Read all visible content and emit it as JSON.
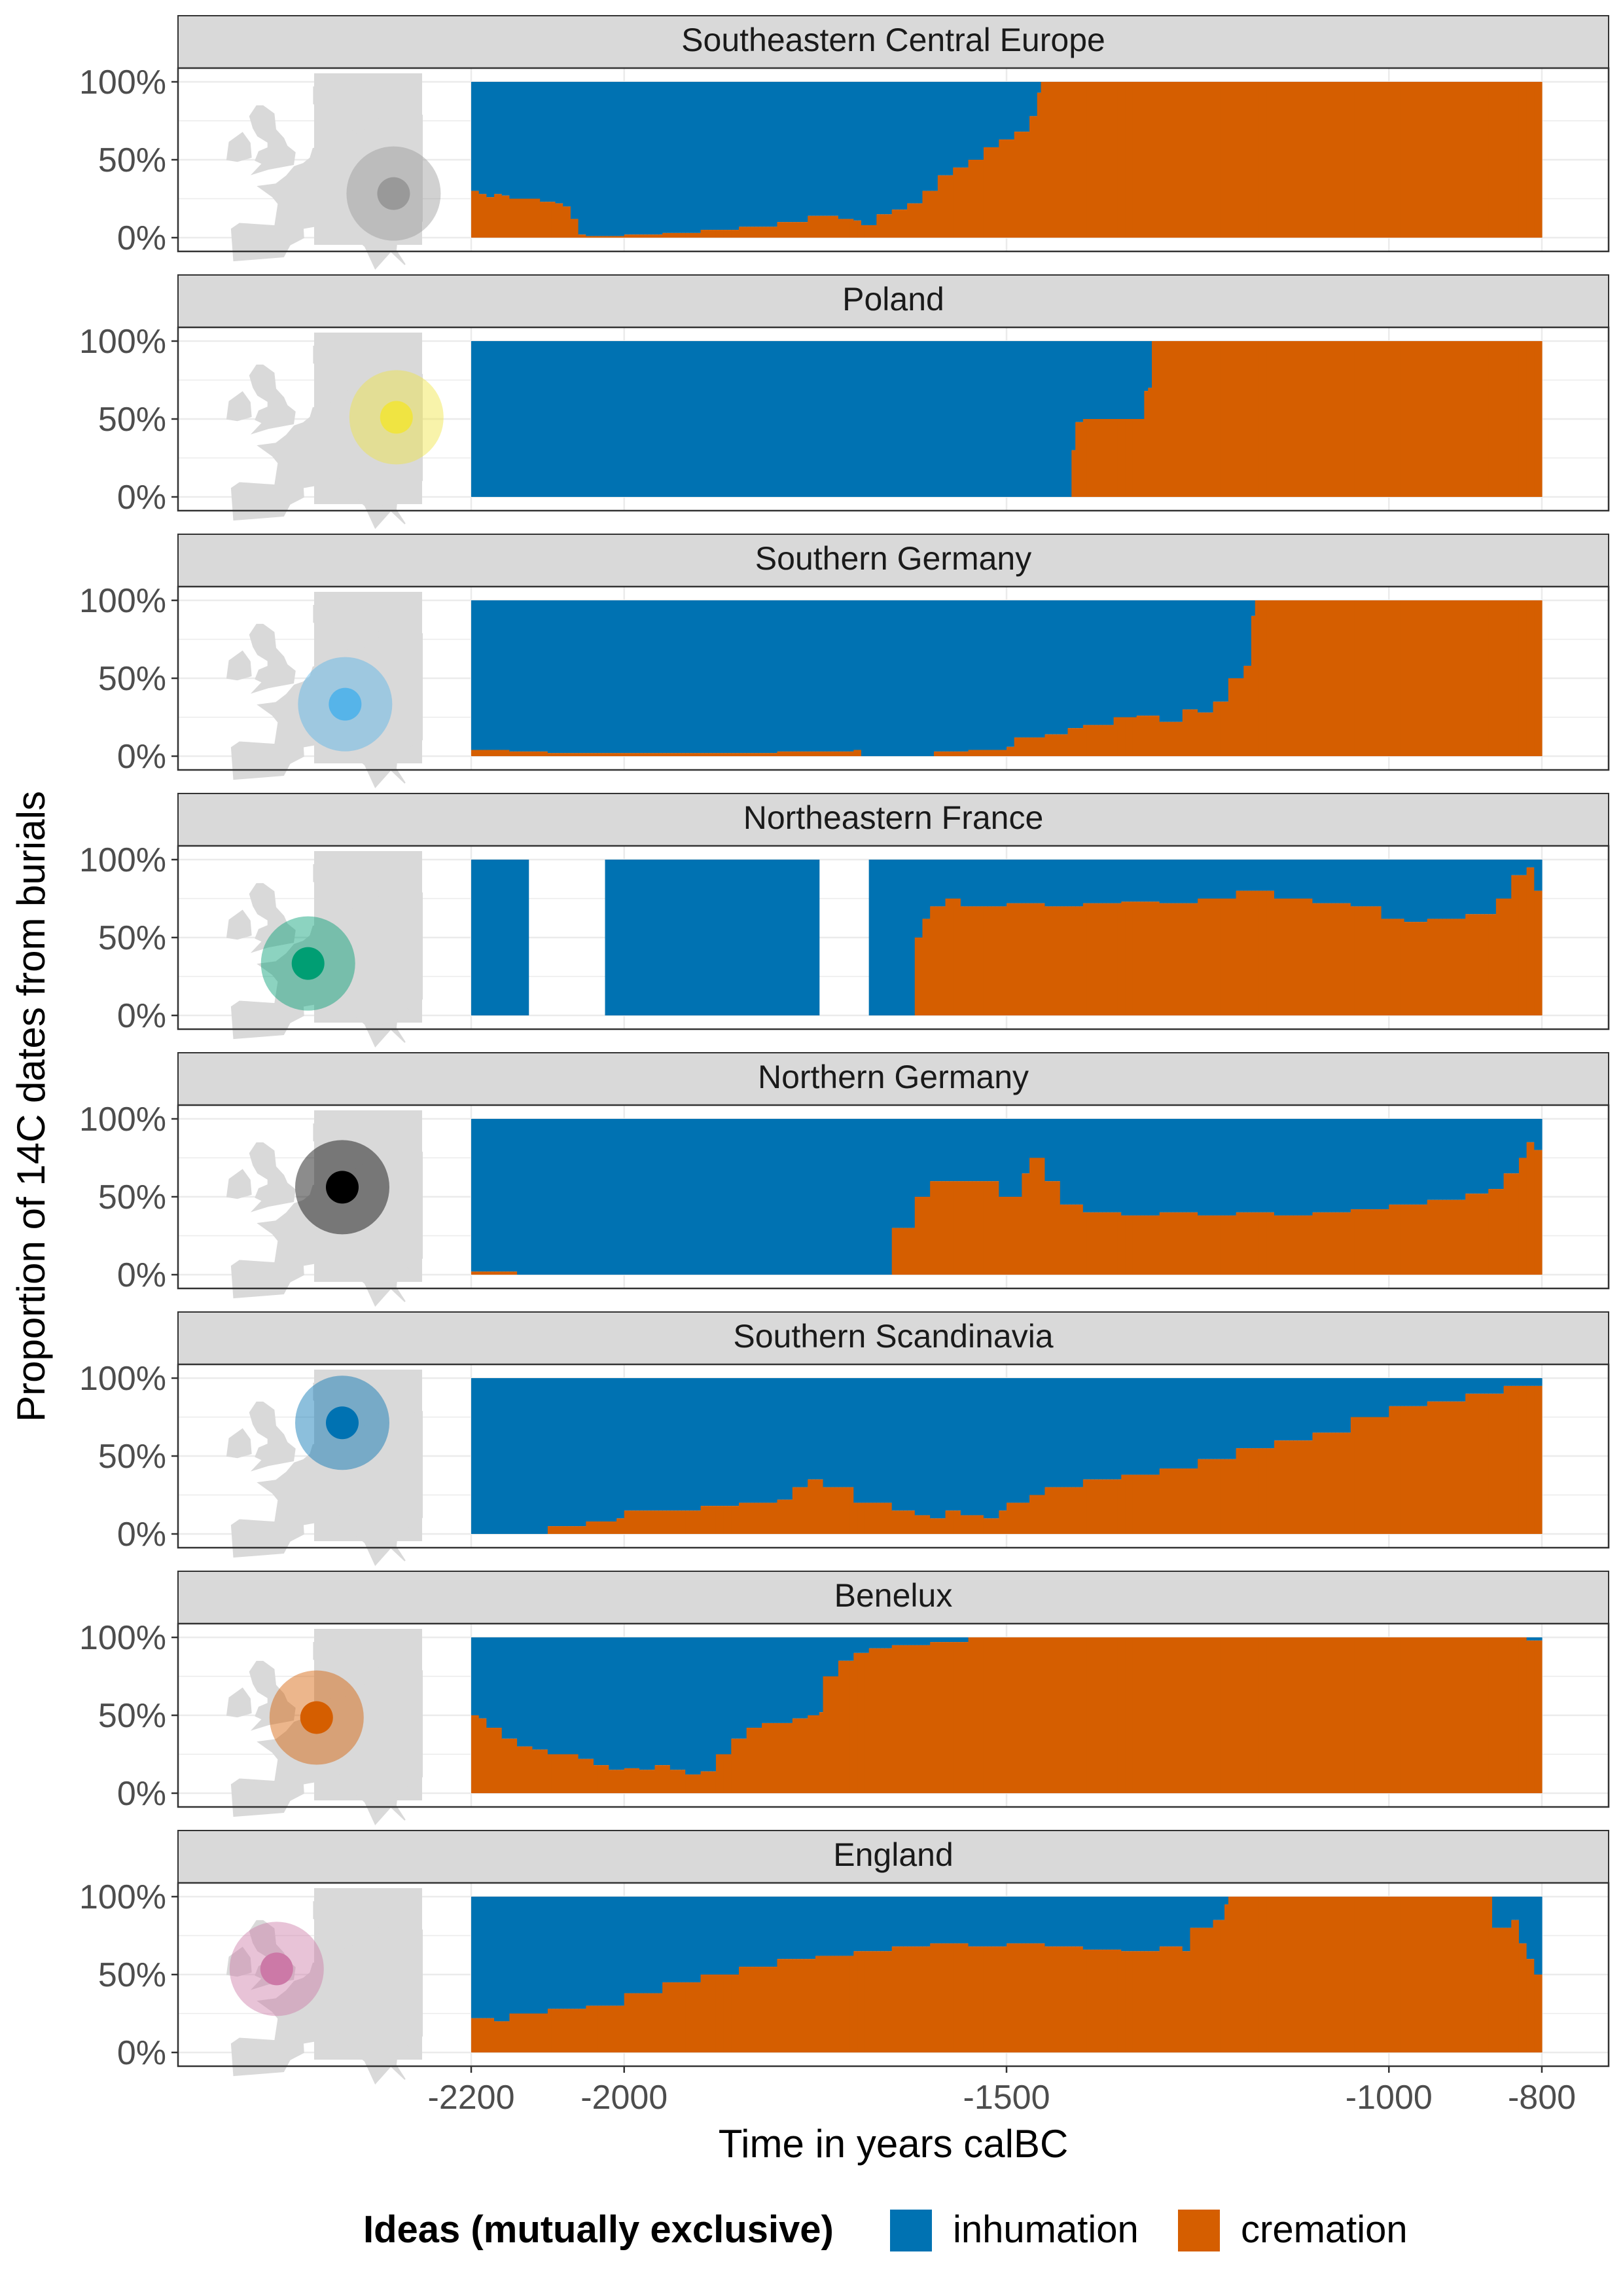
{
  "colors": {
    "inhumation": "#0072B2",
    "cremation": "#D55E00",
    "strip_fill": "#D9D9D9",
    "map_land": "#D9D9D9",
    "grid": "#EBEBEB"
  },
  "chart_data": {
    "type": "area",
    "stacked_proportion": true,
    "facet_by": "region",
    "xlabel": "Time in years calBC",
    "ylabel": "Proportion of 14C dates from burials",
    "xlim": [
      -2200,
      -800
    ],
    "x_ticks": [
      -2200,
      -2000,
      -1500,
      -1000,
      -800
    ],
    "x_tick_labels": [
      "-2200",
      "-2000",
      "-1500",
      "-1000",
      "-800"
    ],
    "ylim": [
      0,
      1
    ],
    "y_ticks": [
      0,
      0.5,
      1
    ],
    "y_tick_labels": [
      "0%",
      "50%",
      "100%"
    ],
    "grid": true,
    "legend": {
      "position": "bottom",
      "title": "Ideas (mutually exclusive)",
      "entries": [
        {
          "key": "inhumation",
          "label": "inhumation",
          "color": "#0072B2"
        },
        {
          "key": "cremation",
          "label": "cremation",
          "color": "#D55E00"
        }
      ]
    },
    "facets": [
      {
        "title": "Southeastern Central Europe",
        "map_marker_color": "#999999",
        "map_marker": {
          "lon": 19.0,
          "lat": 47.5
        },
        "cremation_share": [
          [
            -2200,
            0.3
          ],
          [
            -2190,
            0.28
          ],
          [
            -2180,
            0.26
          ],
          [
            -2170,
            0.28
          ],
          [
            -2160,
            0.27
          ],
          [
            -2150,
            0.25
          ],
          [
            -2130,
            0.25
          ],
          [
            -2110,
            0.23
          ],
          [
            -2090,
            0.22
          ],
          [
            -2080,
            0.2
          ],
          [
            -2070,
            0.12
          ],
          [
            -2060,
            0.02
          ],
          [
            -2050,
            0.01
          ],
          [
            -2000,
            0.02
          ],
          [
            -1950,
            0.03
          ],
          [
            -1900,
            0.05
          ],
          [
            -1850,
            0.07
          ],
          [
            -1800,
            0.1
          ],
          [
            -1760,
            0.14
          ],
          [
            -1740,
            0.14
          ],
          [
            -1720,
            0.12
          ],
          [
            -1700,
            0.11
          ],
          [
            -1690,
            0.08
          ],
          [
            -1670,
            0.15
          ],
          [
            -1650,
            0.18
          ],
          [
            -1630,
            0.22
          ],
          [
            -1610,
            0.3
          ],
          [
            -1590,
            0.4
          ],
          [
            -1570,
            0.45
          ],
          [
            -1550,
            0.5
          ],
          [
            -1530,
            0.58
          ],
          [
            -1510,
            0.63
          ],
          [
            -1490,
            0.68
          ],
          [
            -1470,
            0.78
          ],
          [
            -1460,
            0.93
          ],
          [
            -1455,
            1.0
          ],
          [
            -800,
            1.0
          ]
        ]
      },
      {
        "title": "Poland",
        "map_marker_color": "#F0E442",
        "map_marker": {
          "lon": 19.5,
          "lat": 52.0
        },
        "cremation_share": [
          [
            -2200,
            0.0
          ],
          [
            -1416,
            0.0
          ],
          [
            -1414,
            0.3
          ],
          [
            -1410,
            0.48
          ],
          [
            -1400,
            0.5
          ],
          [
            -1330,
            0.5
          ],
          [
            -1320,
            0.68
          ],
          [
            -1315,
            0.7
          ],
          [
            -1312,
            1.0
          ],
          [
            -800,
            1.0
          ]
        ]
      },
      {
        "title": "Southern Germany",
        "map_marker_color": "#56B4E9",
        "map_marker": {
          "lon": 10.5,
          "lat": 48.5
        },
        "cremation_share": [
          [
            -2200,
            0.04
          ],
          [
            -2150,
            0.03
          ],
          [
            -2100,
            0.02
          ],
          [
            -2000,
            0.02
          ],
          [
            -1900,
            0.02
          ],
          [
            -1800,
            0.03
          ],
          [
            -1700,
            0.04
          ],
          [
            -1690,
            0.0
          ],
          [
            -1600,
            0.0
          ],
          [
            -1595,
            0.03
          ],
          [
            -1550,
            0.04
          ],
          [
            -1500,
            0.06
          ],
          [
            -1490,
            0.12
          ],
          [
            -1450,
            0.14
          ],
          [
            -1420,
            0.18
          ],
          [
            -1400,
            0.2
          ],
          [
            -1360,
            0.25
          ],
          [
            -1330,
            0.26
          ],
          [
            -1300,
            0.22
          ],
          [
            -1270,
            0.3
          ],
          [
            -1250,
            0.28
          ],
          [
            -1230,
            0.35
          ],
          [
            -1210,
            0.5
          ],
          [
            -1190,
            0.58
          ],
          [
            -1180,
            0.9
          ],
          [
            -1175,
            1.0
          ],
          [
            -800,
            1.0
          ]
        ]
      },
      {
        "title": "Northeastern France",
        "map_marker_color": "#009E73",
        "map_marker": {
          "lon": 4.0,
          "lat": 48.5
        },
        "gaps": [
          [
            -2125,
            -2025
          ],
          [
            -1745,
            -1680
          ]
        ],
        "cremation_share": [
          [
            -2200,
            0.0
          ],
          [
            -1625,
            0.0
          ],
          [
            -1620,
            0.5
          ],
          [
            -1610,
            0.62
          ],
          [
            -1600,
            0.7
          ],
          [
            -1580,
            0.75
          ],
          [
            -1560,
            0.7
          ],
          [
            -1500,
            0.72
          ],
          [
            -1450,
            0.7
          ],
          [
            -1400,
            0.72
          ],
          [
            -1350,
            0.73
          ],
          [
            -1300,
            0.72
          ],
          [
            -1250,
            0.75
          ],
          [
            -1200,
            0.8
          ],
          [
            -1150,
            0.75
          ],
          [
            -1100,
            0.72
          ],
          [
            -1050,
            0.7
          ],
          [
            -1010,
            0.62
          ],
          [
            -980,
            0.6
          ],
          [
            -950,
            0.62
          ],
          [
            -900,
            0.65
          ],
          [
            -860,
            0.75
          ],
          [
            -840,
            0.9
          ],
          [
            -820,
            0.95
          ],
          [
            -810,
            0.8
          ],
          [
            -800,
            0.6
          ]
        ]
      },
      {
        "title": "Northern Germany",
        "map_marker_color": "#000000",
        "map_marker": {
          "lon": 10.0,
          "lat": 53.0
        },
        "cremation_share": [
          [
            -2200,
            0.02
          ],
          [
            -2150,
            0.02
          ],
          [
            -2140,
            0.0
          ],
          [
            -1660,
            0.0
          ],
          [
            -1650,
            0.3
          ],
          [
            -1640,
            0.3
          ],
          [
            -1620,
            0.5
          ],
          [
            -1600,
            0.6
          ],
          [
            -1560,
            0.6
          ],
          [
            -1520,
            0.6
          ],
          [
            -1510,
            0.5
          ],
          [
            -1500,
            0.5
          ],
          [
            -1480,
            0.65
          ],
          [
            -1470,
            0.75
          ],
          [
            -1450,
            0.6
          ],
          [
            -1430,
            0.45
          ],
          [
            -1400,
            0.4
          ],
          [
            -1350,
            0.38
          ],
          [
            -1300,
            0.4
          ],
          [
            -1250,
            0.38
          ],
          [
            -1200,
            0.4
          ],
          [
            -1150,
            0.38
          ],
          [
            -1100,
            0.4
          ],
          [
            -1050,
            0.42
          ],
          [
            -1000,
            0.45
          ],
          [
            -950,
            0.48
          ],
          [
            -900,
            0.52
          ],
          [
            -870,
            0.55
          ],
          [
            -850,
            0.65
          ],
          [
            -830,
            0.75
          ],
          [
            -820,
            0.85
          ],
          [
            -810,
            0.8
          ],
          [
            -800,
            0.7
          ]
        ]
      },
      {
        "title": "Southern Scandinavia",
        "map_marker_color": "#0072B2",
        "map_marker": {
          "lon": 10.0,
          "lat": 56.0
        },
        "cremation_share": [
          [
            -2200,
            0.0
          ],
          [
            -2110,
            0.0
          ],
          [
            -2100,
            0.05
          ],
          [
            -2050,
            0.08
          ],
          [
            -2010,
            0.1
          ],
          [
            -2000,
            0.15
          ],
          [
            -1950,
            0.15
          ],
          [
            -1900,
            0.18
          ],
          [
            -1850,
            0.2
          ],
          [
            -1800,
            0.22
          ],
          [
            -1780,
            0.3
          ],
          [
            -1760,
            0.35
          ],
          [
            -1740,
            0.3
          ],
          [
            -1700,
            0.2
          ],
          [
            -1650,
            0.15
          ],
          [
            -1620,
            0.12
          ],
          [
            -1600,
            0.1
          ],
          [
            -1580,
            0.15
          ],
          [
            -1560,
            0.12
          ],
          [
            -1530,
            0.1
          ],
          [
            -1510,
            0.15
          ],
          [
            -1500,
            0.2
          ],
          [
            -1470,
            0.25
          ],
          [
            -1450,
            0.3
          ],
          [
            -1400,
            0.35
          ],
          [
            -1350,
            0.38
          ],
          [
            -1300,
            0.42
          ],
          [
            -1250,
            0.48
          ],
          [
            -1200,
            0.55
          ],
          [
            -1150,
            0.6
          ],
          [
            -1100,
            0.65
          ],
          [
            -1050,
            0.75
          ],
          [
            -1000,
            0.82
          ],
          [
            -950,
            0.85
          ],
          [
            -900,
            0.9
          ],
          [
            -850,
            0.95
          ],
          [
            -800,
            0.95
          ]
        ]
      },
      {
        "title": "Benelux",
        "map_marker_color": "#D55E00",
        "map_marker": {
          "lon": 5.5,
          "lat": 51.5
        },
        "cremation_share": [
          [
            -2200,
            0.5
          ],
          [
            -2190,
            0.48
          ],
          [
            -2180,
            0.42
          ],
          [
            -2160,
            0.35
          ],
          [
            -2140,
            0.3
          ],
          [
            -2120,
            0.28
          ],
          [
            -2100,
            0.25
          ],
          [
            -2080,
            0.25
          ],
          [
            -2060,
            0.22
          ],
          [
            -2040,
            0.18
          ],
          [
            -2020,
            0.15
          ],
          [
            -2000,
            0.16
          ],
          [
            -1980,
            0.15
          ],
          [
            -1960,
            0.18
          ],
          [
            -1940,
            0.15
          ],
          [
            -1920,
            0.12
          ],
          [
            -1900,
            0.14
          ],
          [
            -1880,
            0.25
          ],
          [
            -1860,
            0.35
          ],
          [
            -1840,
            0.42
          ],
          [
            -1820,
            0.45
          ],
          [
            -1800,
            0.45
          ],
          [
            -1780,
            0.48
          ],
          [
            -1760,
            0.5
          ],
          [
            -1745,
            0.52
          ],
          [
            -1740,
            0.75
          ],
          [
            -1720,
            0.85
          ],
          [
            -1700,
            0.9
          ],
          [
            -1680,
            0.93
          ],
          [
            -1650,
            0.95
          ],
          [
            -1600,
            0.97
          ],
          [
            -1550,
            1.0
          ],
          [
            -840,
            1.0
          ],
          [
            -820,
            0.98
          ],
          [
            -800,
            0.93
          ]
        ]
      },
      {
        "title": "England",
        "map_marker_color": "#CC79A7",
        "map_marker": {
          "lon": -1.5,
          "lat": 52.5
        },
        "cremation_share": [
          [
            -2200,
            0.22
          ],
          [
            -2170,
            0.2
          ],
          [
            -2150,
            0.25
          ],
          [
            -2100,
            0.28
          ],
          [
            -2050,
            0.3
          ],
          [
            -2000,
            0.38
          ],
          [
            -1950,
            0.45
          ],
          [
            -1900,
            0.5
          ],
          [
            -1850,
            0.55
          ],
          [
            -1800,
            0.6
          ],
          [
            -1750,
            0.62
          ],
          [
            -1700,
            0.65
          ],
          [
            -1650,
            0.68
          ],
          [
            -1600,
            0.7
          ],
          [
            -1550,
            0.68
          ],
          [
            -1500,
            0.7
          ],
          [
            -1450,
            0.68
          ],
          [
            -1400,
            0.66
          ],
          [
            -1350,
            0.65
          ],
          [
            -1300,
            0.68
          ],
          [
            -1270,
            0.65
          ],
          [
            -1260,
            0.8
          ],
          [
            -1230,
            0.85
          ],
          [
            -1215,
            0.95
          ],
          [
            -1210,
            1.0
          ],
          [
            -870,
            1.0
          ],
          [
            -865,
            0.8
          ],
          [
            -840,
            0.85
          ],
          [
            -830,
            0.7
          ],
          [
            -820,
            0.6
          ],
          [
            -810,
            0.5
          ],
          [
            -800,
            0.5
          ]
        ]
      }
    ]
  }
}
